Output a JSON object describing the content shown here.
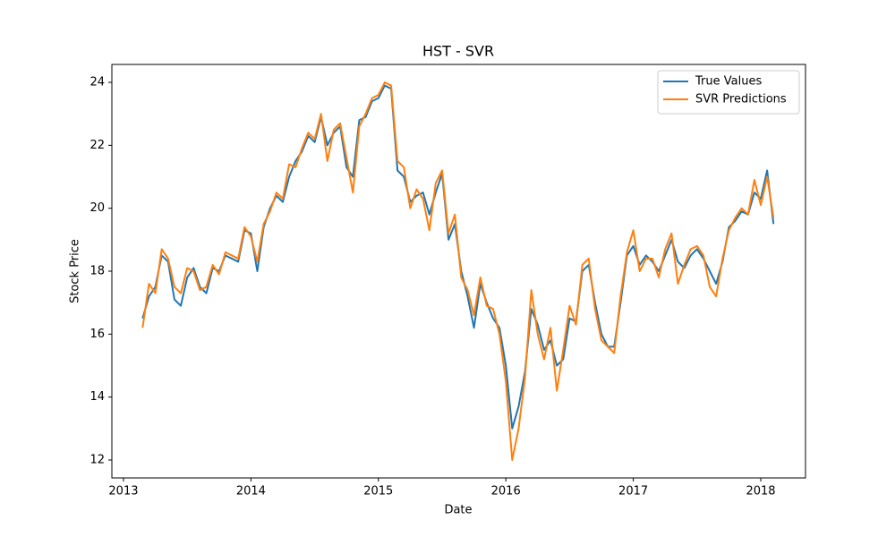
{
  "chart_data": {
    "type": "line",
    "title": "HST - SVR",
    "x_label": "Date",
    "y_label": "Stock Price",
    "x": [
      2013.15,
      2013.2,
      2013.25,
      2013.3,
      2013.35,
      2013.4,
      2013.45,
      2013.5,
      2013.55,
      2013.6,
      2013.65,
      2013.7,
      2013.75,
      2013.8,
      2013.85,
      2013.9,
      2013.95,
      2014.0,
      2014.05,
      2014.1,
      2014.15,
      2014.2,
      2014.25,
      2014.3,
      2014.35,
      2014.4,
      2014.45,
      2014.5,
      2014.55,
      2014.6,
      2014.65,
      2014.7,
      2014.75,
      2014.8,
      2014.85,
      2014.9,
      2014.95,
      2015.0,
      2015.05,
      2015.1,
      2015.15,
      2015.2,
      2015.25,
      2015.3,
      2015.35,
      2015.4,
      2015.45,
      2015.5,
      2015.55,
      2015.6,
      2015.65,
      2015.7,
      2015.75,
      2015.8,
      2015.85,
      2015.9,
      2015.95,
      2016.0,
      2016.05,
      2016.1,
      2016.15,
      2016.2,
      2016.25,
      2016.3,
      2016.35,
      2016.4,
      2016.45,
      2016.5,
      2016.55,
      2016.6,
      2016.65,
      2016.7,
      2016.75,
      2016.8,
      2016.85,
      2016.9,
      2016.95,
      2017.0,
      2017.05,
      2017.1,
      2017.15,
      2017.2,
      2017.25,
      2017.3,
      2017.35,
      2017.4,
      2017.45,
      2017.5,
      2017.55,
      2017.6,
      2017.65,
      2017.7,
      2017.75,
      2017.8,
      2017.85,
      2017.9,
      2017.95,
      2018.0,
      2018.05,
      2018.1
    ],
    "series": [
      {
        "name": "True Values",
        "color": "#1f77b4",
        "values": [
          16.5,
          17.2,
          17.5,
          18.5,
          18.3,
          17.1,
          16.9,
          17.8,
          18.1,
          17.5,
          17.3,
          18.1,
          18.0,
          18.5,
          18.4,
          18.3,
          19.3,
          19.2,
          18.0,
          19.4,
          20.0,
          20.4,
          20.2,
          21.0,
          21.5,
          21.8,
          22.3,
          22.1,
          22.9,
          22.0,
          22.4,
          22.6,
          21.3,
          21.0,
          22.8,
          22.9,
          23.4,
          23.5,
          23.9,
          23.8,
          21.2,
          21.0,
          20.2,
          20.4,
          20.5,
          19.8,
          20.5,
          21.1,
          19.0,
          19.5,
          18.0,
          17.2,
          16.2,
          17.6,
          17.0,
          16.5,
          16.2,
          15.0,
          13.0,
          13.7,
          14.8,
          16.8,
          16.3,
          15.5,
          15.8,
          15.0,
          15.2,
          16.5,
          16.4,
          18.0,
          18.2,
          17.0,
          16.0,
          15.6,
          15.6,
          17.0,
          18.5,
          18.8,
          18.2,
          18.5,
          18.3,
          18.0,
          18.5,
          19.0,
          18.3,
          18.1,
          18.5,
          18.7,
          18.4,
          18.0,
          17.6,
          18.3,
          19.4,
          19.6,
          19.9,
          19.8,
          20.5,
          20.3,
          21.2,
          19.5
        ]
      },
      {
        "name": "SVR Predictions",
        "color": "#ff7f0e",
        "values": [
          16.2,
          17.6,
          17.3,
          18.7,
          18.4,
          17.5,
          17.3,
          18.1,
          18.0,
          17.4,
          17.5,
          18.2,
          17.9,
          18.6,
          18.5,
          18.4,
          19.4,
          19.1,
          18.3,
          19.5,
          19.9,
          20.5,
          20.3,
          21.4,
          21.3,
          21.9,
          22.4,
          22.2,
          23.0,
          21.5,
          22.5,
          22.7,
          21.6,
          20.5,
          22.6,
          23.0,
          23.5,
          23.6,
          24.0,
          23.9,
          21.5,
          21.3,
          20.0,
          20.6,
          20.3,
          19.3,
          20.8,
          21.2,
          19.2,
          19.8,
          17.8,
          17.4,
          16.6,
          17.8,
          16.9,
          16.8,
          16.0,
          14.5,
          12.0,
          13.0,
          14.6,
          17.4,
          16.0,
          15.2,
          16.2,
          14.2,
          15.5,
          16.9,
          16.3,
          18.2,
          18.4,
          16.8,
          15.8,
          15.6,
          15.4,
          17.2,
          18.6,
          19.3,
          18.0,
          18.4,
          18.4,
          17.8,
          18.7,
          19.2,
          17.6,
          18.2,
          18.7,
          18.8,
          18.5,
          17.5,
          17.2,
          18.4,
          19.3,
          19.7,
          20.0,
          19.8,
          20.9,
          20.1,
          21.0,
          19.7
        ]
      }
    ],
    "xlim": [
      2012.909,
      2018.351
    ],
    "xticks": [
      2013,
      2014,
      2015,
      2016,
      2017,
      2018
    ],
    "ylim": [
      11.43,
      24.57
    ],
    "yticks": [
      12,
      14,
      16,
      18,
      20,
      22,
      24
    ],
    "legend": "upper right"
  }
}
